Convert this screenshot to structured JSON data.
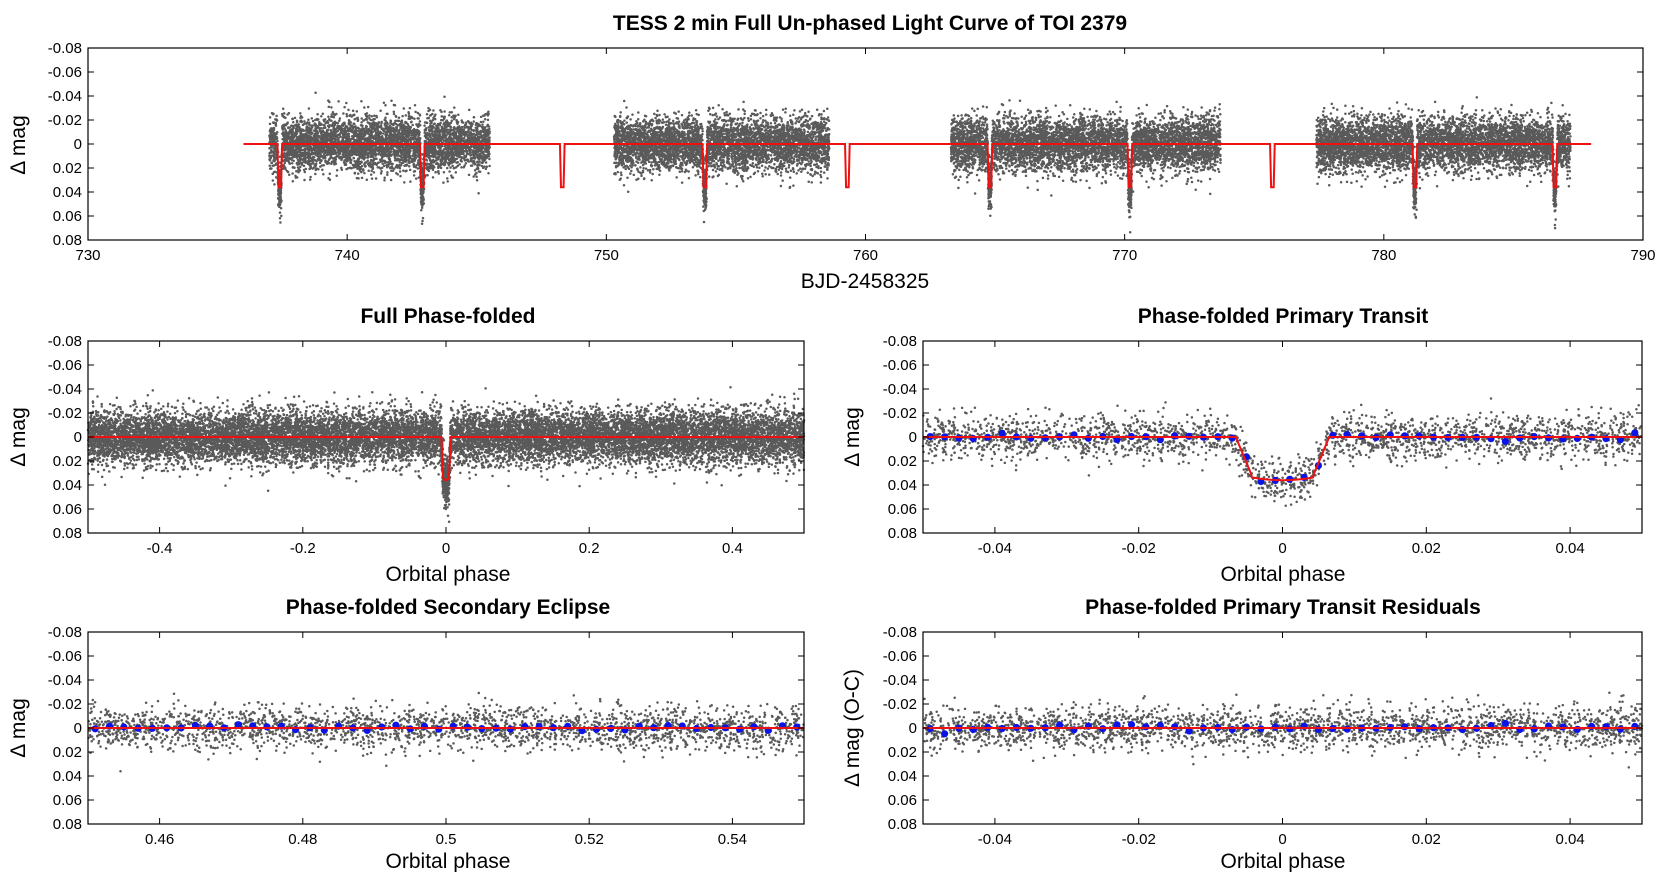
{
  "chart_data": [
    {
      "id": "full",
      "type": "scatter",
      "title": "TESS 2 min Full Un-phased Light Curve of TOI 2379",
      "xlabel": "BJD-2458325",
      "ylabel": "Δ mag",
      "xlim": [
        730,
        790
      ],
      "ylim": [
        -0.08,
        0.08
      ],
      "y_inverted": true,
      "xticks": [
        730,
        740,
        750,
        760,
        770,
        780,
        790
      ],
      "xtick_labels": [
        "730",
        "740",
        "750",
        "760",
        "770",
        "780",
        "790"
      ],
      "yticks": [
        -0.08,
        -0.06,
        -0.04,
        -0.02,
        0,
        0.02,
        0.04,
        0.06,
        0.08
      ],
      "ytick_labels": [
        "-0.08",
        "-0.06",
        "-0.04",
        "-0.02",
        "0",
        "0.02",
        "0.04",
        "0.06",
        "0.08"
      ],
      "data_segments": [
        [
          737.0,
          745.5
        ],
        [
          750.3,
          758.6
        ],
        [
          763.3,
          773.7
        ],
        [
          777.4,
          787.2
        ]
      ],
      "model_range": [
        736.0,
        788.0
      ],
      "transit_times": [
        737.4,
        742.9,
        748.3,
        753.8,
        759.3,
        764.8,
        770.2,
        775.7,
        781.2,
        786.6
      ],
      "transit_depth": 0.036,
      "scatter_sigma": 0.011,
      "model_color": "#ee1111",
      "point_color": "#5a5a5a"
    },
    {
      "id": "phase",
      "type": "scatter",
      "title": "Full Phase-folded",
      "xlabel": "Orbital phase",
      "ylabel": "Δ mag",
      "xlim": [
        -0.5,
        0.5
      ],
      "ylim": [
        -0.08,
        0.08
      ],
      "y_inverted": true,
      "xticks": [
        -0.4,
        -0.2,
        0,
        0.2,
        0.4
      ],
      "xtick_labels": [
        "-0.4",
        "-0.2",
        "0",
        "0.2",
        "0.4"
      ],
      "yticks": [
        -0.08,
        -0.06,
        -0.04,
        -0.02,
        0,
        0.02,
        0.04,
        0.06,
        0.08
      ],
      "ytick_labels": [
        "-0.08",
        "-0.06",
        "-0.04",
        "-0.02",
        "0",
        "0.02",
        "0.04",
        "0.06",
        "0.08"
      ],
      "transit_depth": 0.036,
      "transit_half_width": 0.0065,
      "scatter_sigma": 0.011
    },
    {
      "id": "primary",
      "type": "scatter",
      "title": "Phase-folded Primary Transit",
      "xlabel": "Orbital phase",
      "ylabel": "Δ mag",
      "xlim": [
        -0.05,
        0.05
      ],
      "ylim": [
        -0.08,
        0.08
      ],
      "y_inverted": true,
      "xticks": [
        -0.04,
        -0.02,
        0,
        0.02,
        0.04
      ],
      "xtick_labels": [
        "-0.04",
        "-0.02",
        "0",
        "0.02",
        "0.04"
      ],
      "yticks": [
        -0.08,
        -0.06,
        -0.04,
        -0.02,
        0,
        0.02,
        0.04,
        0.06,
        0.08
      ],
      "ytick_labels": [
        "-0.08",
        "-0.06",
        "-0.04",
        "-0.02",
        "0",
        "0.02",
        "0.04",
        "0.06",
        "0.08"
      ],
      "transit_depth": 0.036,
      "transit_half_width": 0.0065,
      "ingress": 0.0022,
      "scatter_sigma": 0.009,
      "binned_color": "#0a14e6"
    },
    {
      "id": "secondary",
      "type": "scatter",
      "title": "Phase-folded Secondary Eclipse",
      "xlabel": "Orbital phase",
      "ylabel": "Δ mag",
      "xlim": [
        0.45,
        0.55
      ],
      "ylim": [
        -0.08,
        0.08
      ],
      "y_inverted": true,
      "xticks": [
        0.46,
        0.48,
        0.5,
        0.52,
        0.54
      ],
      "xtick_labels": [
        "0.46",
        "0.48",
        "0.5",
        "0.52",
        "0.54"
      ],
      "yticks": [
        -0.08,
        -0.06,
        -0.04,
        -0.02,
        0,
        0.02,
        0.04,
        0.06,
        0.08
      ],
      "ytick_labels": [
        "-0.08",
        "-0.06",
        "-0.04",
        "-0.02",
        "0",
        "0.02",
        "0.04",
        "0.06",
        "0.08"
      ],
      "transit_depth": 0,
      "scatter_sigma": 0.009
    },
    {
      "id": "residuals",
      "type": "scatter",
      "title": "Phase-folded Primary Transit Residuals",
      "xlabel": "Orbital phase",
      "ylabel": "Δ mag (O-C)",
      "xlim": [
        -0.05,
        0.05
      ],
      "ylim": [
        -0.08,
        0.08
      ],
      "y_inverted": true,
      "xticks": [
        -0.04,
        -0.02,
        0,
        0.02,
        0.04
      ],
      "xtick_labels": [
        "-0.04",
        "-0.02",
        "0",
        "0.02",
        "0.04"
      ],
      "yticks": [
        -0.08,
        -0.06,
        -0.04,
        -0.02,
        0,
        0.02,
        0.04,
        0.06,
        0.08
      ],
      "ytick_labels": [
        "-0.08",
        "-0.06",
        "-0.04",
        "-0.02",
        "0",
        "0.02",
        "0.04",
        "0.06",
        "0.08"
      ],
      "transit_depth": 0,
      "scatter_sigma": 0.009
    }
  ]
}
